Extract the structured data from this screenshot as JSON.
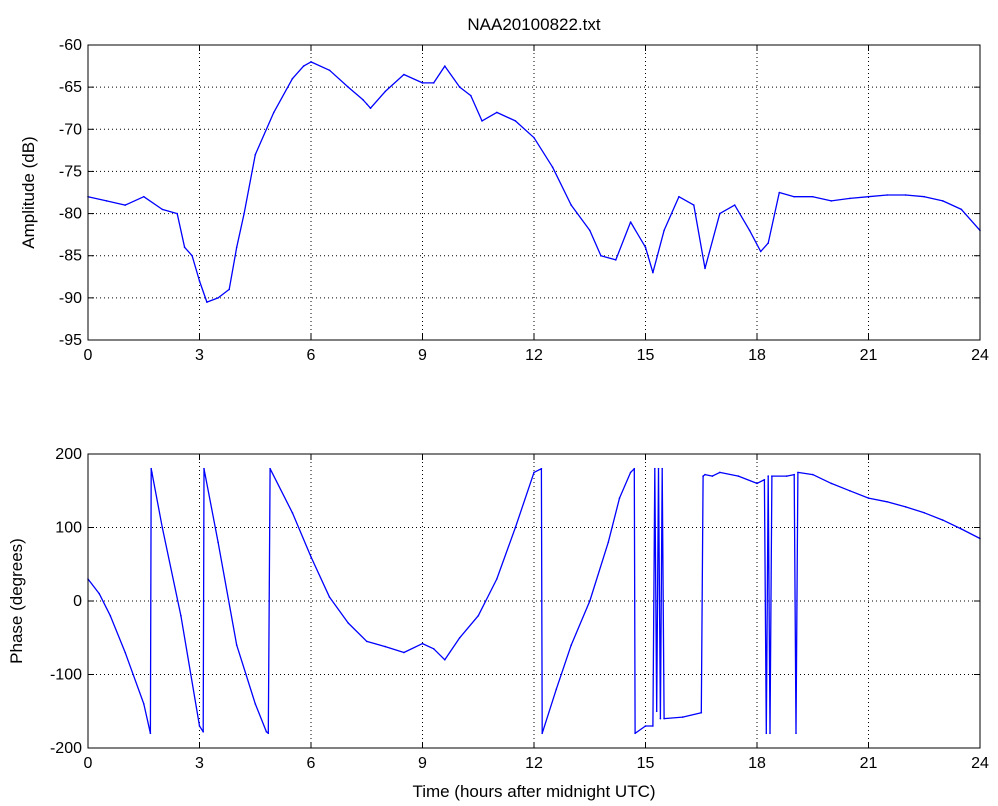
{
  "chart_data": [
    {
      "type": "line",
      "title": "NAA20100822.txt",
      "xlabel": "",
      "ylabel": "Amplitude (dB)",
      "xlim": [
        0,
        24
      ],
      "ylim": [
        -95,
        -60
      ],
      "xticks": [
        "0",
        "3",
        "6",
        "9",
        "12",
        "15",
        "18",
        "21",
        "24"
      ],
      "yticks": [
        "-60",
        "-65",
        "-70",
        "-75",
        "-80",
        "-85",
        "-90",
        "-95"
      ],
      "grid": true,
      "series": [
        {
          "color": "#0000ff",
          "x": [
            0.0,
            0.5,
            1.0,
            1.5,
            2.0,
            2.4,
            2.6,
            2.8,
            3.0,
            3.2,
            3.5,
            3.8,
            4.0,
            4.2,
            4.5,
            5.0,
            5.5,
            5.8,
            6.0,
            6.5,
            7.0,
            7.4,
            7.5,
            7.6,
            8.0,
            8.5,
            9.0,
            9.3,
            9.6,
            10.0,
            10.3,
            10.6,
            11.0,
            11.5,
            12.0,
            12.5,
            13.0,
            13.5,
            13.8,
            14.2,
            14.6,
            15.0,
            15.2,
            15.5,
            15.9,
            16.3,
            16.6,
            17.0,
            17.4,
            17.8,
            18.1,
            18.3,
            18.6,
            19.0,
            19.5,
            20.0,
            20.5,
            21.0,
            21.5,
            22.0,
            22.5,
            23.0,
            23.5,
            24.0
          ],
          "values": [
            -78,
            -78.5,
            -79,
            -78,
            -79.5,
            -80,
            -84,
            -85,
            -88,
            -90.5,
            -90,
            -89,
            -84,
            -80,
            -73,
            -68,
            -64,
            -62.5,
            -62,
            -63,
            -65,
            -66.5,
            -67,
            -67.5,
            -65.5,
            -63.5,
            -64.5,
            -64.5,
            -62.5,
            -65,
            -66,
            -69,
            -68,
            -69,
            -71,
            -74.5,
            -79,
            -82,
            -85,
            -85.5,
            -81,
            -84,
            -87,
            -82,
            -78,
            -79,
            -86.5,
            -80,
            -79,
            -82,
            -84.5,
            -83.5,
            -77.5,
            -78,
            -78,
            -78.5,
            -78.2,
            -78,
            -77.8,
            -77.8,
            -78,
            -78.5,
            -79.5,
            -82
          ]
        }
      ]
    },
    {
      "type": "line",
      "title": "",
      "xlabel": "Time (hours after midnight UTC)",
      "ylabel": "Phase (degrees)",
      "xlim": [
        0,
        24
      ],
      "ylim": [
        -200,
        200
      ],
      "xticks": [
        "0",
        "3",
        "6",
        "9",
        "12",
        "15",
        "18",
        "21",
        "24"
      ],
      "yticks": [
        "200",
        "100",
        "0",
        "-100",
        "-200"
      ],
      "grid": true,
      "series": [
        {
          "color": "#0000ff",
          "x": [
            0.0,
            0.3,
            0.6,
            1.0,
            1.5,
            1.68,
            1.7,
            1.72,
            2.0,
            2.5,
            3.0,
            3.1,
            3.12,
            3.5,
            4.0,
            4.5,
            4.8,
            4.85,
            4.9,
            5.5,
            6.0,
            6.5,
            7.0,
            7.5,
            8.0,
            8.5,
            9.0,
            9.3,
            9.6,
            10.0,
            10.5,
            11.0,
            11.5,
            12.0,
            12.2,
            12.22,
            12.6,
            13.0,
            13.5,
            14.0,
            14.3,
            14.6,
            14.7,
            14.72,
            15.0,
            15.2,
            15.25,
            15.3,
            15.35,
            15.4,
            15.45,
            15.5,
            16.0,
            16.5,
            16.55,
            16.6,
            16.8,
            17.0,
            17.5,
            18.0,
            18.2,
            18.25,
            18.3,
            18.35,
            18.4,
            18.8,
            19.0,
            19.05,
            19.1,
            19.5,
            20.0,
            20.5,
            21.0,
            21.5,
            22.0,
            22.5,
            23.0,
            23.5,
            24.0
          ],
          "values": [
            30,
            10,
            -20,
            -70,
            -140,
            -180,
            180,
            175,
            100,
            -20,
            -170,
            -178,
            180,
            80,
            -60,
            -140,
            -178,
            -180,
            180,
            120,
            60,
            5,
            -30,
            -55,
            -62,
            -70,
            -58,
            -65,
            -80,
            -50,
            -20,
            30,
            100,
            175,
            180,
            -180,
            -120,
            -60,
            0,
            80,
            140,
            175,
            180,
            -180,
            -170,
            -170,
            180,
            -150,
            180,
            -160,
            180,
            -160,
            -158,
            -152,
            170,
            172,
            170,
            175,
            170,
            160,
            165,
            -180,
            170,
            -180,
            170,
            170,
            172,
            -180,
            175,
            172,
            160,
            150,
            140,
            135,
            128,
            120,
            110,
            98,
            85
          ]
        }
      ]
    }
  ]
}
